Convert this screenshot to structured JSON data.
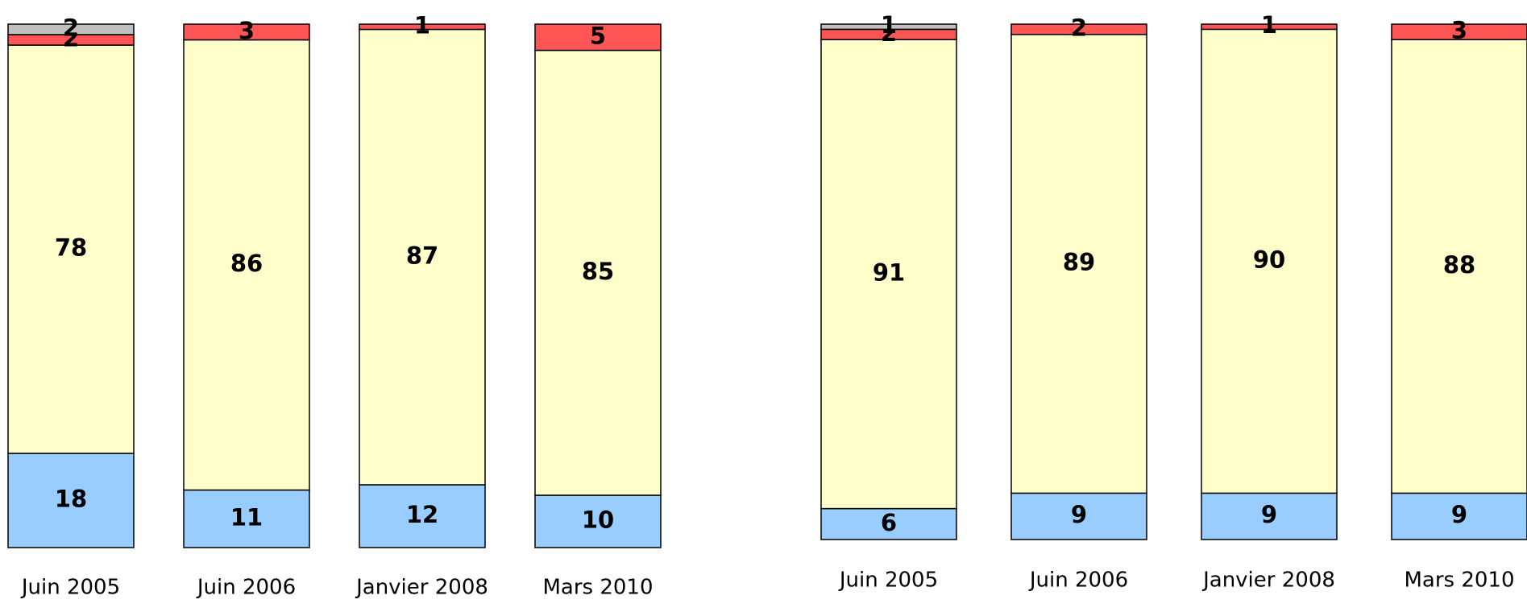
{
  "chart_data": [
    {
      "type": "bar",
      "stacked": true,
      "categories": [
        "Juin 2005",
        "Juin 2006",
        "Janvier 2008",
        "Mars 2010"
      ],
      "ylim": [
        0,
        100
      ],
      "series": [
        {
          "color": "#99ccff",
          "values": [
            18,
            11,
            12,
            10
          ]
        },
        {
          "color": "#ffffcc",
          "values": [
            78,
            86,
            87,
            85
          ]
        },
        {
          "color": "#ff5555",
          "values": [
            2,
            3,
            1,
            5
          ]
        },
        {
          "color": "#c0c0c0",
          "values": [
            2,
            null,
            null,
            null
          ]
        }
      ]
    },
    {
      "type": "bar",
      "stacked": true,
      "categories": [
        "Juin 2005",
        "Juin 2006",
        "Janvier 2008",
        "Mars 2010"
      ],
      "ylim": [
        0,
        100
      ],
      "series": [
        {
          "color": "#99ccff",
          "values": [
            6,
            9,
            9,
            9
          ]
        },
        {
          "color": "#ffffcc",
          "values": [
            91,
            89,
            90,
            88
          ]
        },
        {
          "color": "#ff5555",
          "values": [
            2,
            2,
            1,
            3
          ]
        },
        {
          "color": "#c0c0c0",
          "values": [
            1,
            null,
            null,
            null
          ]
        }
      ]
    }
  ]
}
